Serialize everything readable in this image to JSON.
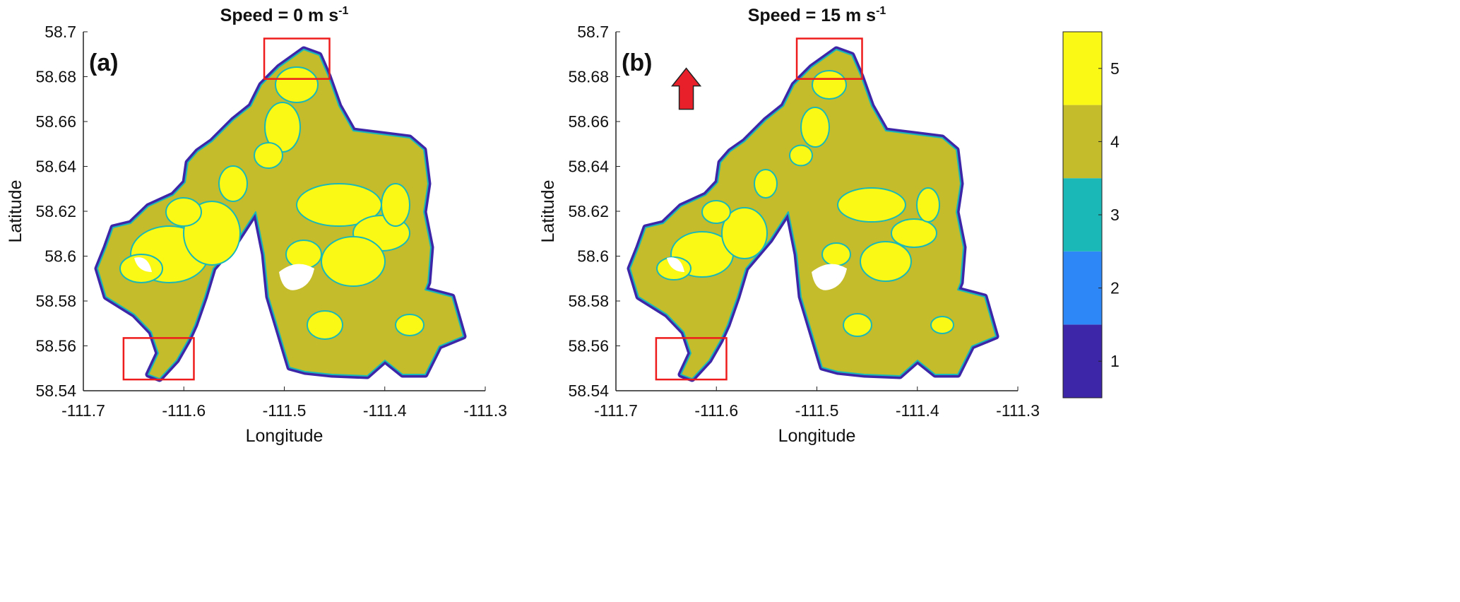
{
  "chart_data": [
    {
      "type": "heatmap",
      "panel_label": "(a)",
      "title": "Speed = 0 m s",
      "title_superscript": "-1",
      "xlabel": "Longitude",
      "ylabel": "Latitude",
      "xlim": [
        -111.7,
        -111.3
      ],
      "ylim": [
        58.54,
        58.7
      ],
      "xticks": [
        "-111.7",
        "-111.6",
        "-111.5",
        "-111.4",
        "-111.3"
      ],
      "yticks": [
        "58.54",
        "58.56",
        "58.58",
        "58.6",
        "58.62",
        "58.64",
        "58.66",
        "58.68",
        "58.7"
      ],
      "highlight_boxes": [
        {
          "lon": [
            -111.52,
            -111.455
          ],
          "lat": [
            58.679,
            58.697
          ]
        },
        {
          "lon": [
            -111.66,
            -111.59
          ],
          "lat": [
            58.545,
            58.5635
          ]
        }
      ]
    },
    {
      "type": "heatmap",
      "panel_label": "(b)",
      "title": "Speed = 15 m s",
      "title_superscript": "-1",
      "xlabel": "Longitude",
      "ylabel": "Latitude",
      "xlim": [
        -111.7,
        -111.3
      ],
      "ylim": [
        58.54,
        58.7
      ],
      "xticks": [
        "-111.7",
        "-111.6",
        "-111.5",
        "-111.4",
        "-111.3"
      ],
      "yticks": [
        "58.54",
        "58.56",
        "58.58",
        "58.6",
        "58.62",
        "58.64",
        "58.66",
        "58.68",
        "58.7"
      ],
      "wind_arrow": {
        "direction": "north",
        "lon": -111.63,
        "lat": 58.668
      },
      "highlight_boxes": [
        {
          "lon": [
            -111.52,
            -111.455
          ],
          "lat": [
            58.679,
            58.697
          ]
        },
        {
          "lon": [
            -111.66,
            -111.59
          ],
          "lat": [
            58.545,
            58.5635
          ]
        }
      ]
    }
  ],
  "colorbar": {
    "ticks": [
      "1",
      "2",
      "3",
      "4",
      "5"
    ],
    "colors": [
      "#3d26a8",
      "#2e87f7",
      "#1ab8b6",
      "#c5bc2c",
      "#f9f915"
    ]
  },
  "colors": {
    "box": "#ee1c1c",
    "arrow": "#e8202a",
    "water": "#ffffff"
  }
}
